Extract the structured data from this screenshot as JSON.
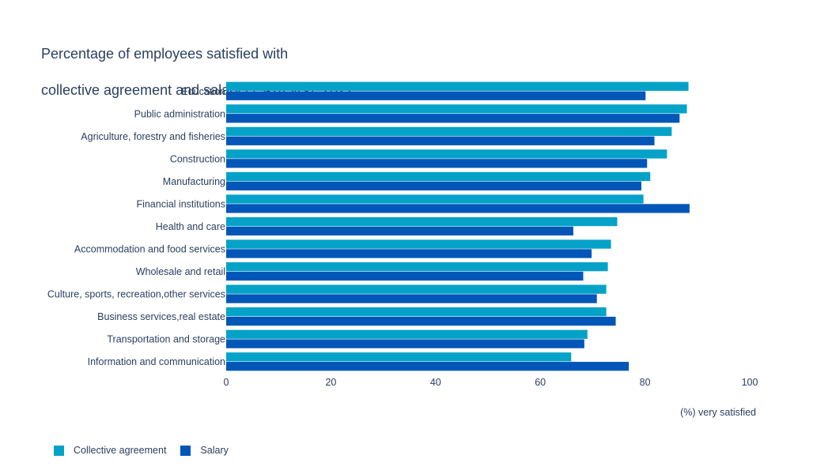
{
  "chart_data": {
    "type": "bar",
    "orientation": "horizontal",
    "title_lines": [
      "Percentage of employees satisfied with",
      "collective agreement and salary (15-74 yrs), 2022"
    ],
    "xlabel": "(%) very satisfied",
    "xlim": [
      0,
      100
    ],
    "xticks": [
      0,
      20,
      40,
      60,
      80,
      100
    ],
    "grid": false,
    "legend_position": "bottom-left",
    "categories": [
      "Education",
      "Public administration",
      "Agriculture, forestry and fisheries",
      "Construction",
      "Manufacturing",
      "Financial institutions",
      "Health and care",
      "Accommodation and food services",
      "Wholesale and retail",
      "Culture, sports, recreation,other services",
      "Business services,real estate",
      "Transportation and storage",
      "Information and communication"
    ],
    "series": [
      {
        "name": "Collective agreement",
        "color": "#05a2c8",
        "values": [
          88.3,
          88.0,
          85.1,
          84.2,
          81.0,
          79.7,
          74.7,
          73.5,
          72.9,
          72.6,
          72.6,
          69.0,
          65.9
        ]
      },
      {
        "name": "Salary",
        "color": "#0256b8",
        "values": [
          80.1,
          86.6,
          81.8,
          80.4,
          79.3,
          88.5,
          66.3,
          69.8,
          68.2,
          70.8,
          74.4,
          68.4,
          76.9
        ]
      }
    ]
  }
}
